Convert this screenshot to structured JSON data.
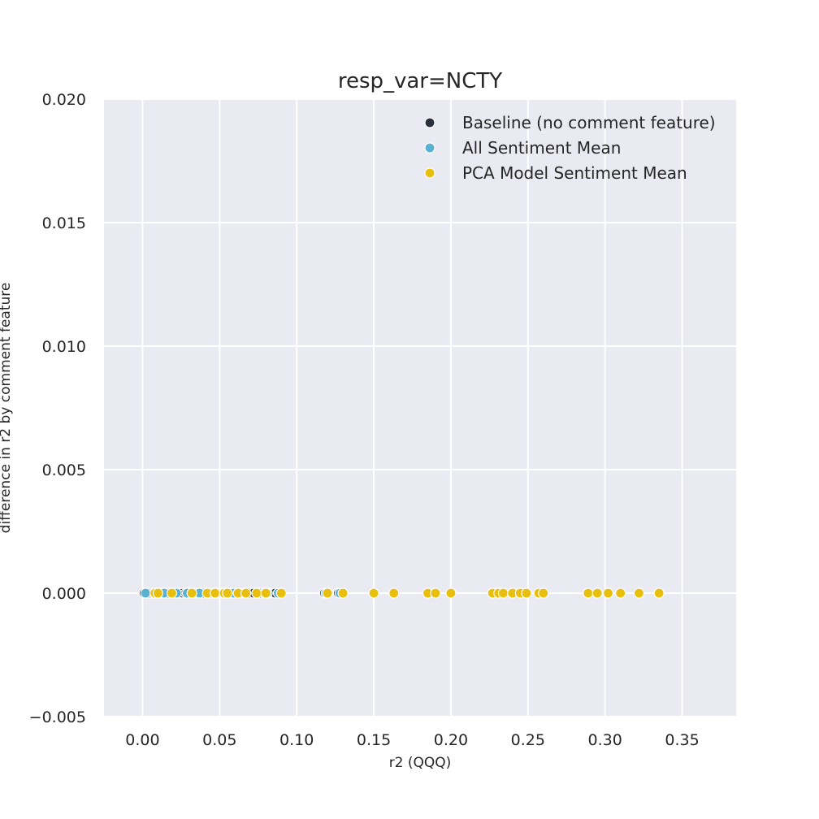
{
  "chart_data": {
    "type": "scatter",
    "title": "resp_var=NCTY",
    "xlabel": "r2 (QQQ)",
    "ylabel": "difference in r2 by comment feature",
    "xlim": [
      -0.025,
      0.385
    ],
    "ylim": [
      -0.005,
      0.02
    ],
    "x_ticks": [
      "0.00",
      "0.05",
      "0.10",
      "0.15",
      "0.20",
      "0.25",
      "0.30",
      "0.35"
    ],
    "y_ticks": [
      "−0.005",
      "0.000",
      "0.005",
      "0.010",
      "0.015",
      "0.020"
    ],
    "x_tick_values": [
      0,
      0.05,
      0.1,
      0.15,
      0.2,
      0.25,
      0.3,
      0.35
    ],
    "y_tick_values": [
      -0.005,
      0,
      0.005,
      0.01,
      0.015,
      0.02
    ],
    "grid": true,
    "legend_position": "top-right",
    "background": "#eaeaf2",
    "series": [
      {
        "name": "Baseline (no comment feature)",
        "color": "#2b2f3b",
        "x": [
          0.001,
          0.003,
          0.005,
          0.007,
          0.009,
          0.011,
          0.013,
          0.015,
          0.017,
          0.019,
          0.021,
          0.024,
          0.026,
          0.028,
          0.03,
          0.033,
          0.036,
          0.039,
          0.042,
          0.045,
          0.048,
          0.051,
          0.054,
          0.057,
          0.06,
          0.063,
          0.066,
          0.069,
          0.072,
          0.076,
          0.079,
          0.082,
          0.086,
          0.089,
          0.118,
          0.127
        ],
        "y": [
          0,
          0,
          0,
          0,
          0,
          0,
          0,
          0,
          0,
          0,
          0,
          0,
          0,
          0,
          0,
          0,
          0,
          0,
          0,
          0,
          0,
          0,
          0,
          0,
          0,
          0,
          0,
          0,
          0,
          0,
          0,
          0,
          0,
          0,
          0,
          0
        ]
      },
      {
        "name": "All Sentiment Mean",
        "color": "#59b0d0",
        "x": [
          0.002,
          0.008,
          0.014,
          0.022,
          0.029,
          0.037,
          0.044,
          0.052,
          0.059,
          0.067,
          0.074,
          0.081,
          0.088,
          0.119,
          0.128
        ],
        "y": [
          0,
          0,
          0,
          0,
          0,
          0,
          0,
          0,
          0,
          0,
          0,
          0,
          0,
          0,
          0
        ]
      },
      {
        "name": "PCA Model Sentiment Mean",
        "color": "#e8bf0c",
        "x": [
          0.008,
          0.01,
          0.019,
          0.032,
          0.042,
          0.047,
          0.053,
          0.055,
          0.062,
          0.067,
          0.074,
          0.08,
          0.09,
          0.12,
          0.13,
          0.15,
          0.163,
          0.185,
          0.19,
          0.2,
          0.227,
          0.231,
          0.234,
          0.24,
          0.245,
          0.249,
          0.257,
          0.26,
          0.289,
          0.295,
          0.302,
          0.31,
          0.322,
          0.335
        ],
        "y": [
          0,
          0,
          0,
          0,
          0,
          0,
          0,
          0,
          0,
          0,
          0,
          0,
          0,
          0,
          0,
          0,
          0,
          0,
          0,
          0,
          0,
          0,
          0,
          0,
          0,
          0,
          0,
          0,
          0,
          0,
          0,
          0,
          0,
          0
        ]
      }
    ]
  }
}
